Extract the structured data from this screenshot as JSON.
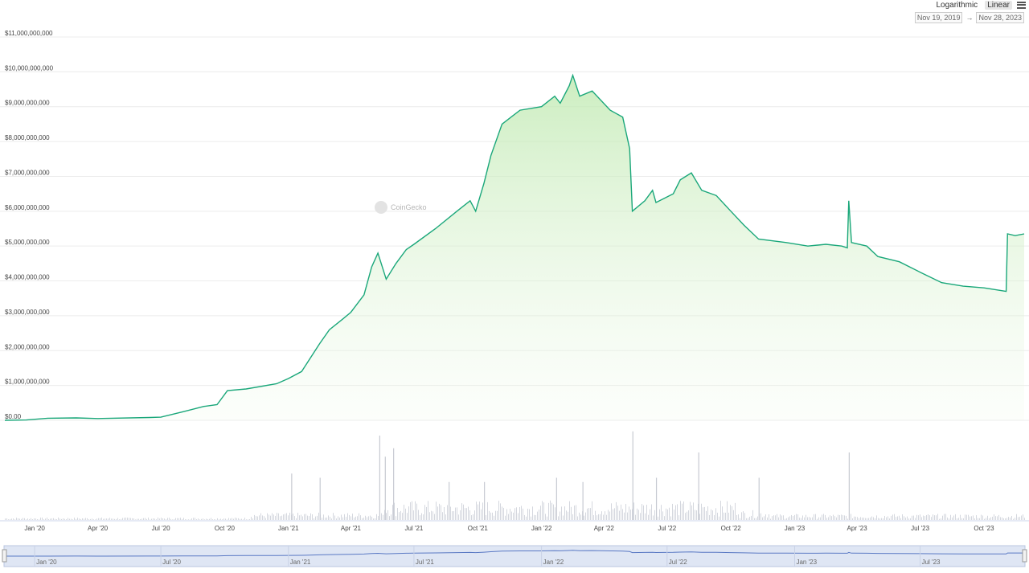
{
  "controls": {
    "scale_options": [
      "Logarithmic",
      "Linear"
    ],
    "selected_scale": "Linear",
    "range_from": "Nov 19, 2019",
    "range_sep": "→",
    "range_to": "Nov 28, 2023",
    "menu_icon": "hamburger-menu-icon"
  },
  "watermark": {
    "text": "CoinGecko",
    "icon": "coingecko-logo-icon"
  },
  "chart_data": {
    "type": "area",
    "title": "",
    "xlabel": "",
    "ylabel": "",
    "ylim": [
      0,
      11000000000
    ],
    "grid": true,
    "y_ticks": [
      {
        "value": 0,
        "label": "$0.00"
      },
      {
        "value": 1000000000,
        "label": "$1,000,000,000"
      },
      {
        "value": 2000000000,
        "label": "$2,000,000,000"
      },
      {
        "value": 3000000000,
        "label": "$3,000,000,000"
      },
      {
        "value": 4000000000,
        "label": "$4,000,000,000"
      },
      {
        "value": 5000000000,
        "label": "$5,000,000,000"
      },
      {
        "value": 6000000000,
        "label": "$6,000,000,000"
      },
      {
        "value": 7000000000,
        "label": "$7,000,000,000"
      },
      {
        "value": 8000000000,
        "label": "$8,000,000,000"
      },
      {
        "value": 9000000000,
        "label": "$9,000,000,000"
      },
      {
        "value": 10000000000,
        "label": "$10,000,000,000"
      },
      {
        "value": 11000000000,
        "label": "$11,000,000,000"
      }
    ],
    "x_range": [
      "2019-11-19",
      "2023-11-28"
    ],
    "x_ticks": [
      {
        "date": "2020-01-01",
        "label": "Jan '20"
      },
      {
        "date": "2020-04-01",
        "label": "Apr '20"
      },
      {
        "date": "2020-07-01",
        "label": "Jul '20"
      },
      {
        "date": "2020-10-01",
        "label": "Oct '20"
      },
      {
        "date": "2021-01-01",
        "label": "Jan '21"
      },
      {
        "date": "2021-04-01",
        "label": "Apr '21"
      },
      {
        "date": "2021-07-01",
        "label": "Jul '21"
      },
      {
        "date": "2021-10-01",
        "label": "Oct '21"
      },
      {
        "date": "2022-01-01",
        "label": "Jan '22"
      },
      {
        "date": "2022-04-01",
        "label": "Apr '22"
      },
      {
        "date": "2022-07-01",
        "label": "Jul '22"
      },
      {
        "date": "2022-10-01",
        "label": "Oct '22"
      },
      {
        "date": "2023-01-01",
        "label": "Jan '23"
      },
      {
        "date": "2023-04-01",
        "label": "Apr '23"
      },
      {
        "date": "2023-07-01",
        "label": "Jul '23"
      },
      {
        "date": "2023-10-01",
        "label": "Oct '23"
      }
    ],
    "navigator_ticks": [
      {
        "date": "2020-01-01",
        "label": "Jan '20"
      },
      {
        "date": "2020-07-01",
        "label": "Jul '20"
      },
      {
        "date": "2021-01-01",
        "label": "Jan '21"
      },
      {
        "date": "2021-07-01",
        "label": "Jul '21"
      },
      {
        "date": "2022-01-01",
        "label": "Jan '22"
      },
      {
        "date": "2022-07-01",
        "label": "Jul '22"
      },
      {
        "date": "2023-01-01",
        "label": "Jan '23"
      },
      {
        "date": "2023-07-01",
        "label": "Jul '23"
      }
    ],
    "series": [
      {
        "color": "#1aa77a",
        "points": [
          [
            "2019-11-19",
            0
          ],
          [
            "2019-12-20",
            10000000
          ],
          [
            "2020-01-20",
            60000000
          ],
          [
            "2020-03-01",
            70000000
          ],
          [
            "2020-04-01",
            50000000
          ],
          [
            "2020-06-15",
            80000000
          ],
          [
            "2020-07-01",
            90000000
          ],
          [
            "2020-08-01",
            240000000
          ],
          [
            "2020-09-01",
            400000000
          ],
          [
            "2020-09-20",
            450000000
          ],
          [
            "2020-10-05",
            850000000
          ],
          [
            "2020-11-01",
            900000000
          ],
          [
            "2020-12-15",
            1050000000
          ],
          [
            "2021-01-01",
            1200000000
          ],
          [
            "2021-01-20",
            1400000000
          ],
          [
            "2021-02-15",
            2200000000
          ],
          [
            "2021-03-01",
            2600000000
          ],
          [
            "2021-03-20",
            2900000000
          ],
          [
            "2021-04-01",
            3100000000
          ],
          [
            "2021-04-20",
            3600000000
          ],
          [
            "2021-05-01",
            4400000000
          ],
          [
            "2021-05-10",
            4800000000
          ],
          [
            "2021-05-22",
            4050000000
          ],
          [
            "2021-06-05",
            4500000000
          ],
          [
            "2021-06-20",
            4900000000
          ],
          [
            "2021-07-01",
            5050000000
          ],
          [
            "2021-08-01",
            5500000000
          ],
          [
            "2021-09-01",
            6000000000
          ],
          [
            "2021-09-20",
            6300000000
          ],
          [
            "2021-09-28",
            6000000000
          ],
          [
            "2021-10-10",
            6800000000
          ],
          [
            "2021-10-20",
            7600000000
          ],
          [
            "2021-11-05",
            8500000000
          ],
          [
            "2021-12-01",
            8900000000
          ],
          [
            "2022-01-01",
            9000000000
          ],
          [
            "2022-01-20",
            9300000000
          ],
          [
            "2022-01-28",
            9100000000
          ],
          [
            "2022-02-10",
            9600000000
          ],
          [
            "2022-02-15",
            9900000000
          ],
          [
            "2022-02-25",
            9300000000
          ],
          [
            "2022-03-15",
            9450000000
          ],
          [
            "2022-04-10",
            8900000000
          ],
          [
            "2022-04-28",
            8700000000
          ],
          [
            "2022-05-08",
            7800000000
          ],
          [
            "2022-05-12",
            6000000000
          ],
          [
            "2022-05-30",
            6300000000
          ],
          [
            "2022-06-10",
            6600000000
          ],
          [
            "2022-06-15",
            6250000000
          ],
          [
            "2022-07-10",
            6500000000
          ],
          [
            "2022-07-20",
            6900000000
          ],
          [
            "2022-08-05",
            7100000000
          ],
          [
            "2022-08-20",
            6600000000
          ],
          [
            "2022-09-10",
            6450000000
          ],
          [
            "2022-10-01",
            6000000000
          ],
          [
            "2022-10-20",
            5600000000
          ],
          [
            "2022-11-10",
            5200000000
          ],
          [
            "2022-12-20",
            5100000000
          ],
          [
            "2023-01-20",
            5000000000
          ],
          [
            "2023-02-15",
            5050000000
          ],
          [
            "2023-03-10",
            5000000000
          ],
          [
            "2023-03-18",
            4950000000
          ],
          [
            "2023-03-20",
            6300000000
          ],
          [
            "2023-03-24",
            5100000000
          ],
          [
            "2023-04-15",
            5000000000
          ],
          [
            "2023-05-01",
            4700000000
          ],
          [
            "2023-06-01",
            4550000000
          ],
          [
            "2023-07-01",
            4250000000
          ],
          [
            "2023-08-01",
            3950000000
          ],
          [
            "2023-09-01",
            3850000000
          ],
          [
            "2023-10-01",
            3800000000
          ],
          [
            "2023-11-02",
            3700000000
          ],
          [
            "2023-11-04",
            5350000000
          ],
          [
            "2023-11-15",
            5300000000
          ],
          [
            "2023-11-28",
            5350000000
          ]
        ]
      }
    ],
    "volume_spikes": [
      {
        "date": "2021-01-05",
        "value": 0.55
      },
      {
        "date": "2021-02-15",
        "value": 0.5
      },
      {
        "date": "2021-05-12",
        "value": 1.0
      },
      {
        "date": "2021-05-20",
        "value": 0.75
      },
      {
        "date": "2021-06-01",
        "value": 0.85
      },
      {
        "date": "2021-08-20",
        "value": 0.45
      },
      {
        "date": "2021-10-10",
        "value": 0.45
      },
      {
        "date": "2022-01-22",
        "value": 0.5
      },
      {
        "date": "2022-03-01",
        "value": 0.45
      },
      {
        "date": "2022-05-12",
        "value": 1.05
      },
      {
        "date": "2022-06-15",
        "value": 0.5
      },
      {
        "date": "2022-08-15",
        "value": 0.8
      },
      {
        "date": "2022-11-10",
        "value": 0.5
      },
      {
        "date": "2023-03-20",
        "value": 0.8
      }
    ]
  }
}
